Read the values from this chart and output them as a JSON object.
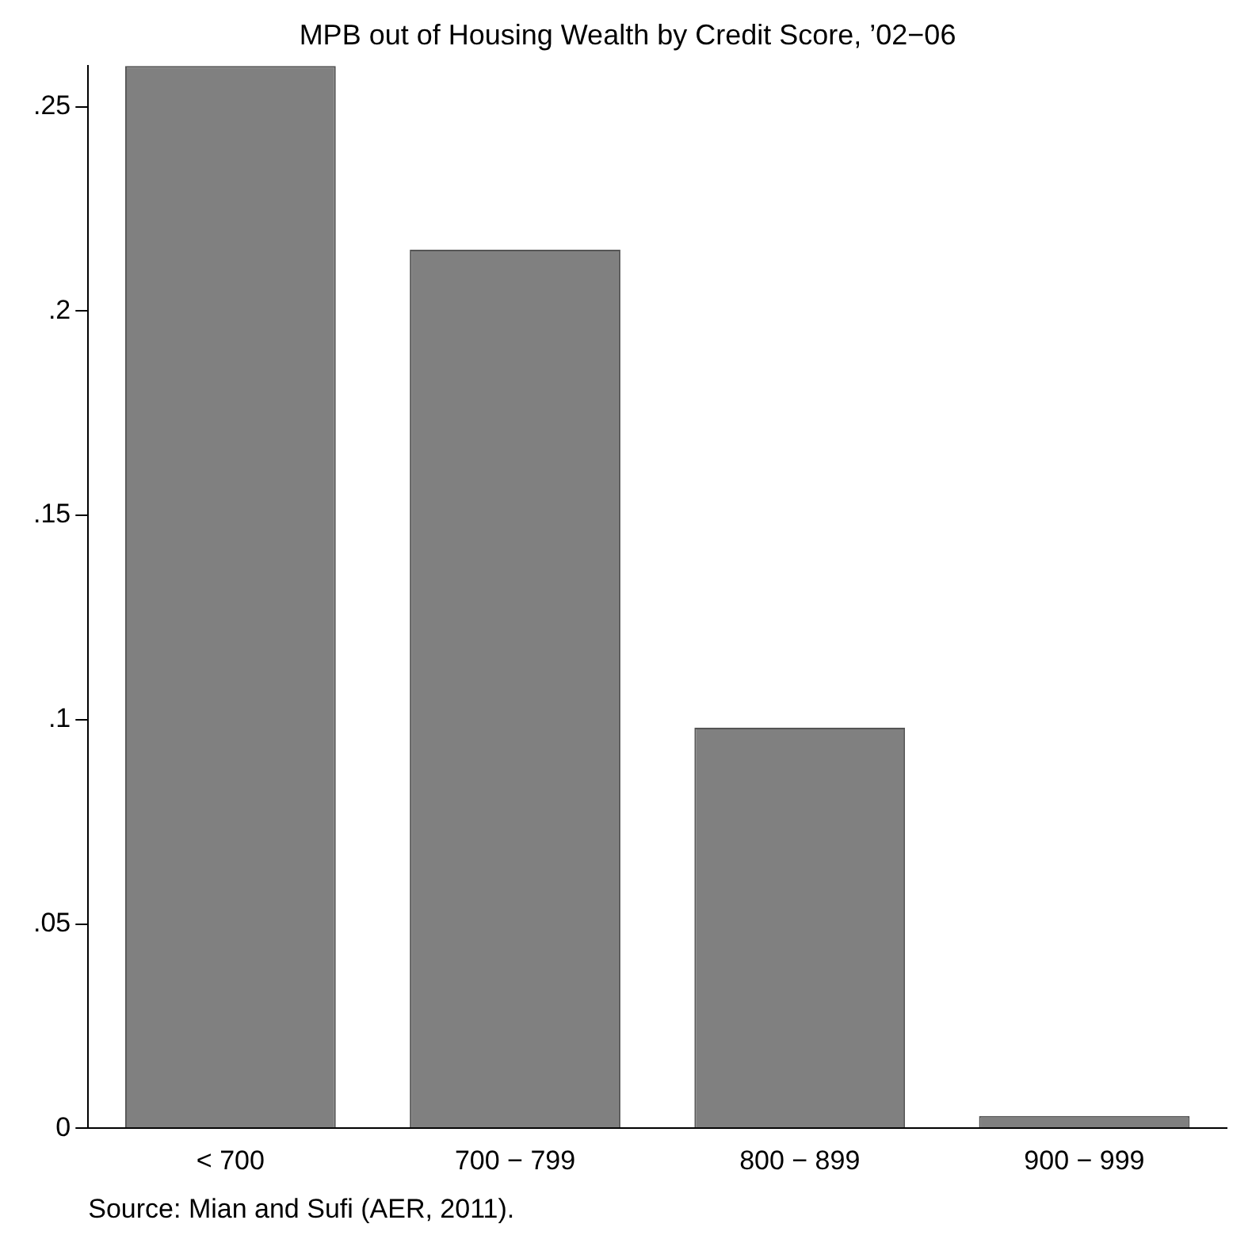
{
  "chart_data": {
    "type": "bar",
    "title": "MPB out of Housing Wealth by Credit Score, ’02−06",
    "categories": [
      "< 700",
      "700 − 799",
      "800 − 899",
      "900 − 999"
    ],
    "values": [
      0.26,
      0.215,
      0.098,
      0.003
    ],
    "color": "#808080",
    "ylim": [
      0,
      0.26
    ],
    "yticks": [
      0,
      {
        "value": 0.05,
        "label": ".05"
      },
      {
        "value": 0.1,
        "label": ".1"
      },
      {
        "value": 0.15,
        "label": ".15"
      },
      {
        "value": 0.2,
        "label": ".2"
      },
      {
        "value": 0.25,
        "label": ".25"
      }
    ],
    "grid": false,
    "legend": false,
    "annotations": [
      "Source: Mian and Sufi (AER, 2011)."
    ]
  }
}
